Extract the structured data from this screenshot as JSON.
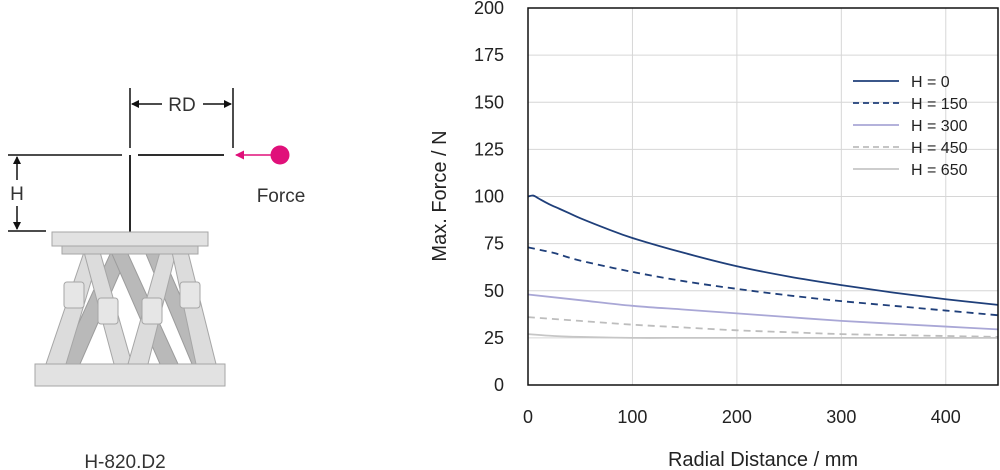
{
  "diagram": {
    "rd_label": "RD",
    "h_label": "H",
    "force_label": "Force",
    "model_label": "H-820.D2",
    "force_color": "#e0107a"
  },
  "chart_data": {
    "type": "line",
    "title": "",
    "xlabel": "Radial Distance / mm",
    "ylabel": "Max. Force / N",
    "xlim": [
      0,
      450
    ],
    "ylim": [
      0,
      200
    ],
    "xticks": [
      0,
      100,
      200,
      300,
      400
    ],
    "yticks": [
      0,
      25,
      50,
      75,
      100,
      125,
      150,
      175,
      200
    ],
    "grid": true,
    "legend_position": "top-right",
    "series": [
      {
        "name": "H = 0",
        "color": "#1f3f7a",
        "dash": "solid",
        "x": [
          0,
          5,
          10,
          20,
          30,
          40,
          50,
          75,
          100,
          150,
          200,
          250,
          300,
          350,
          400,
          450
        ],
        "y": [
          100,
          100.5,
          99,
          96,
          93.5,
          91,
          88.5,
          83,
          78,
          70,
          63,
          57.5,
          53,
          49,
          45.5,
          42.5
        ]
      },
      {
        "name": "H = 150",
        "color": "#1f3f7a",
        "dash": "dashed",
        "x": [
          0,
          25,
          50,
          100,
          150,
          200,
          250,
          300,
          350,
          400,
          450
        ],
        "y": [
          73,
          70,
          66,
          60,
          55,
          51,
          47.5,
          44.5,
          42,
          39.5,
          37
        ]
      },
      {
        "name": "H = 300",
        "color": "#a9a7d6",
        "dash": "solid",
        "x": [
          0,
          50,
          100,
          150,
          200,
          250,
          300,
          350,
          400,
          450
        ],
        "y": [
          48,
          45,
          42,
          40,
          38,
          36,
          34,
          32.5,
          31,
          29.5
        ]
      },
      {
        "name": "H = 450",
        "color": "#bdbdbd",
        "dash": "dashed",
        "x": [
          0,
          50,
          100,
          150,
          200,
          250,
          300,
          350,
          400,
          450
        ],
        "y": [
          36,
          34,
          32,
          30.5,
          29,
          28,
          27,
          26.5,
          26,
          25.5
        ]
      },
      {
        "name": "H = 650",
        "color": "#c6c6c6",
        "dash": "solid",
        "x": [
          0,
          25,
          50,
          100,
          150,
          200,
          250,
          300,
          350,
          400,
          450
        ],
        "y": [
          27,
          26,
          25.5,
          25,
          25,
          25,
          25,
          25,
          25,
          25,
          25
        ]
      }
    ]
  }
}
